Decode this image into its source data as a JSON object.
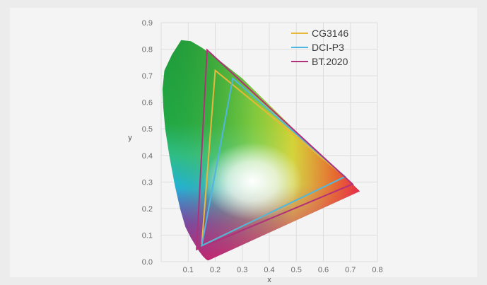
{
  "chart_data": {
    "type": "scatter",
    "title": "",
    "xlabel": "x",
    "ylabel": "y",
    "xlim": [
      0,
      0.8
    ],
    "ylim": [
      0,
      0.9
    ],
    "x_ticks": [
      "0.1",
      "0.2",
      "0.3",
      "0.4",
      "0.5",
      "0.6",
      "0.7",
      "0.8"
    ],
    "y_ticks": [
      "0.0",
      "0.1",
      "0.2",
      "0.3",
      "0.4",
      "0.5",
      "0.6",
      "0.7",
      "0.8",
      "0.9"
    ],
    "grid": true,
    "legend_position": "top-right",
    "spectral_locus": [
      [
        0.175,
        0.005
      ],
      [
        0.172,
        0.005
      ],
      [
        0.166,
        0.009
      ],
      [
        0.155,
        0.02
      ],
      [
        0.14,
        0.04
      ],
      [
        0.11,
        0.09
      ],
      [
        0.09,
        0.13
      ],
      [
        0.07,
        0.2
      ],
      [
        0.05,
        0.29
      ],
      [
        0.03,
        0.4
      ],
      [
        0.015,
        0.5
      ],
      [
        0.008,
        0.58
      ],
      [
        0.005,
        0.65
      ],
      [
        0.012,
        0.72
      ],
      [
        0.04,
        0.78
      ],
      [
        0.074,
        0.834
      ],
      [
        0.11,
        0.83
      ],
      [
        0.15,
        0.806
      ],
      [
        0.2,
        0.77
      ],
      [
        0.3,
        0.69
      ],
      [
        0.4,
        0.59
      ],
      [
        0.5,
        0.49
      ],
      [
        0.6,
        0.395
      ],
      [
        0.68,
        0.32
      ],
      [
        0.735,
        0.265
      ]
    ],
    "white_point": [
      0.3127,
      0.329
    ],
    "series": [
      {
        "name": "CG3146",
        "color": "#e8b83a",
        "points": [
          [
            0.68,
            0.32
          ],
          [
            0.2,
            0.72
          ],
          [
            0.15,
            0.06
          ]
        ]
      },
      {
        "name": "DCI-P3",
        "color": "#4fb6e0",
        "points": [
          [
            0.68,
            0.32
          ],
          [
            0.265,
            0.69
          ],
          [
            0.15,
            0.06
          ]
        ]
      },
      {
        "name": "BT.2020",
        "color": "#b0307a",
        "points": [
          [
            0.708,
            0.292
          ],
          [
            0.17,
            0.797
          ],
          [
            0.131,
            0.046
          ]
        ]
      }
    ]
  }
}
